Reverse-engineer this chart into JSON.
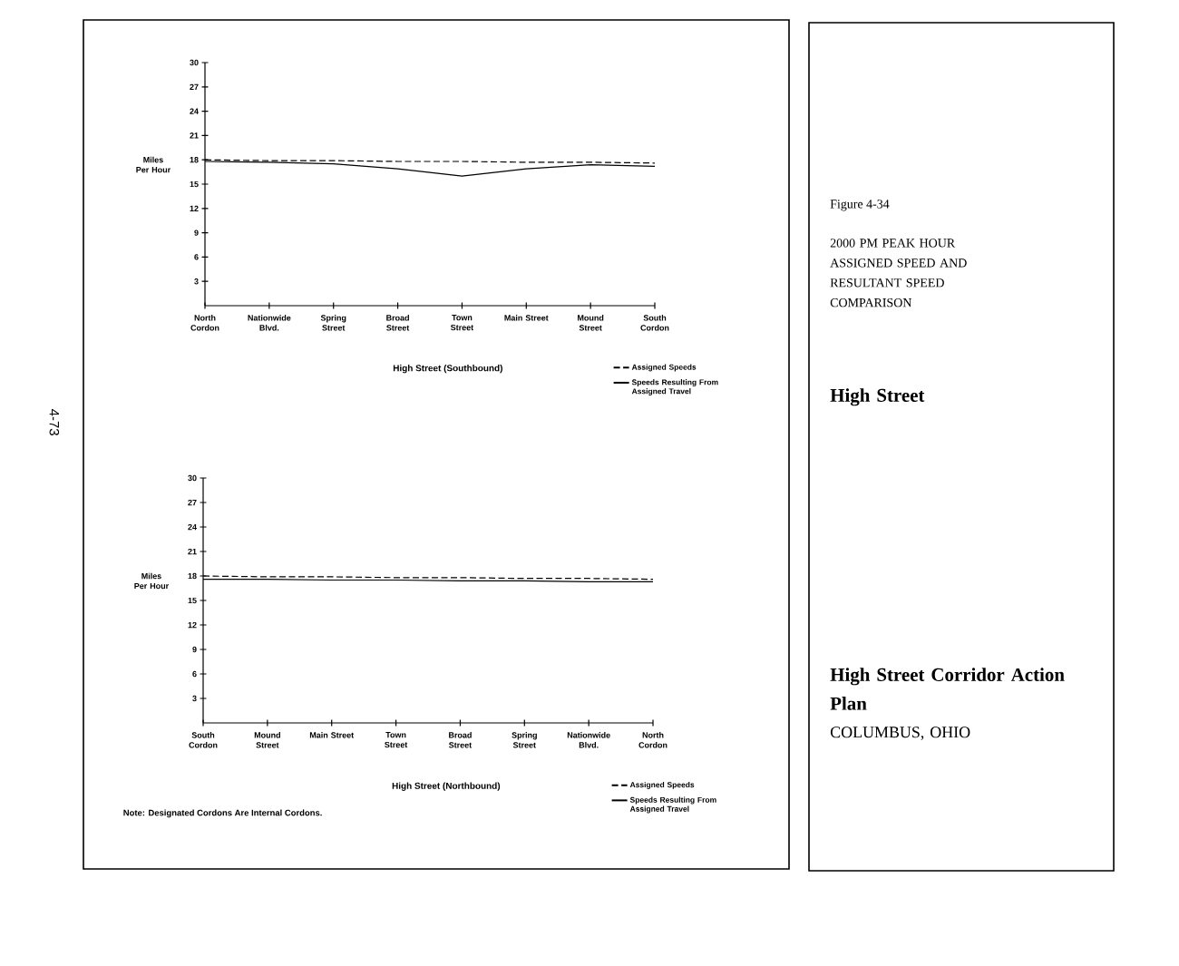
{
  "chart_data": [
    {
      "type": "line",
      "categories": [
        "North Cordon",
        "Nationwide Blvd.",
        "Spring Street",
        "Broad Street",
        "Town Street",
        "Main Street",
        "Mound Street",
        "South Cordon"
      ],
      "series": [
        {
          "name": "Assigned Speeds",
          "color": "#000000",
          "line_style": "dashed",
          "values": [
            18.0,
            17.9,
            17.9,
            17.8,
            17.8,
            17.7,
            17.7,
            17.6
          ]
        },
        {
          "name": "Speeds Resulting From Assigned Travel",
          "color": "#000000",
          "line_style": "solid",
          "values": [
            17.8,
            17.7,
            17.5,
            16.9,
            16.0,
            16.9,
            17.4,
            17.2
          ]
        }
      ],
      "ylim": [
        0,
        30
      ],
      "yticks": [
        3,
        6,
        9,
        12,
        15,
        18,
        21,
        24,
        27,
        30
      ],
      "xlabel": "High Street  (Southbound)",
      "ylabel": "Miles Per Hour",
      "legend": "bottom right",
      "marker": "none",
      "annotations": [
        "4-73"
      ]
    },
    {
      "type": "line",
      "categories": [
        "South Cordon",
        "Mound Street",
        "Main Street",
        "Town Street",
        "Broad Street",
        "Spring Street",
        "Nationwide Blvd.",
        "North Cordon"
      ],
      "series": [
        {
          "name": "Assigned Speeds",
          "color": "#000000",
          "line_style": "dashed",
          "values": [
            18.0,
            17.9,
            17.9,
            17.8,
            17.8,
            17.7,
            17.7,
            17.6
          ]
        },
        {
          "name": "Speeds Resulting From Assigned Travel",
          "color": "#000000",
          "line_style": "solid",
          "values": [
            17.6,
            17.6,
            17.5,
            17.5,
            17.4,
            17.4,
            17.3,
            17.3
          ]
        }
      ],
      "ylim": [
        0,
        30
      ],
      "yticks": [
        3,
        6,
        9,
        12,
        15,
        18,
        21,
        24,
        27,
        30
      ],
      "xlabel": "High Street  (Northbound)",
      "ylabel": "Miles Per Hour",
      "legend": "bottom right",
      "marker": "none",
      "annotations": [
        "Note: Designated Cordons Are Internal Cordons."
      ]
    },
    {
      "type": "other",
      "title": "Figure 4-34",
      "subtitle": "2000 PM PEAK HOUR ASSIGNED SPEED AND RESULTANT SPEED COMPARISON",
      "annotations": [
        "High Street",
        "High Street Corridor Action Plan",
        "COLUMBUS, OHIO"
      ]
    }
  ]
}
